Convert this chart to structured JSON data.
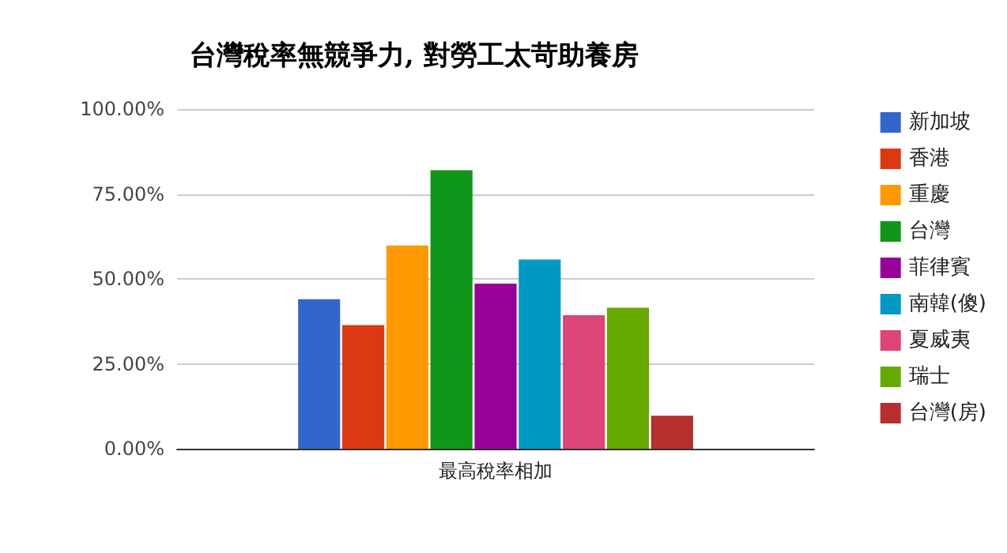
{
  "chart_data": {
    "type": "bar",
    "title": "台灣稅率無競爭力, 對勞工太苛助養房",
    "categories": [
      "最高稅率相加"
    ],
    "series": [
      {
        "name": "新加坡",
        "color": "#3366cc",
        "values": [
          44
        ]
      },
      {
        "name": "香港",
        "color": "#dc3912",
        "values": [
          36.4
        ]
      },
      {
        "name": "重慶",
        "color": "#ff9900",
        "values": [
          59.8
        ]
      },
      {
        "name": "台灣",
        "color": "#109618",
        "values": [
          82
        ]
      },
      {
        "name": "菲律賓",
        "color": "#990099",
        "values": [
          48.6
        ]
      },
      {
        "name": "南韓(傻)",
        "color": "#0099c6",
        "values": [
          55.7
        ]
      },
      {
        "name": "夏威夷",
        "color": "#dd4477",
        "values": [
          39.3
        ]
      },
      {
        "name": "瑞士",
        "color": "#66aa00",
        "values": [
          41.5
        ]
      },
      {
        "name": "台灣(房)",
        "color": "#b82e2e",
        "values": [
          9.7
        ]
      }
    ],
    "ylim": [
      0,
      100
    ],
    "yticks": [
      {
        "value": 0,
        "label": "0.00%"
      },
      {
        "value": 25,
        "label": "25.00%"
      },
      {
        "value": 50,
        "label": "50.00%"
      },
      {
        "value": 75,
        "label": "75.00%"
      },
      {
        "value": 100,
        "label": "100.00%"
      }
    ],
    "grid": "y",
    "legend": "right"
  }
}
